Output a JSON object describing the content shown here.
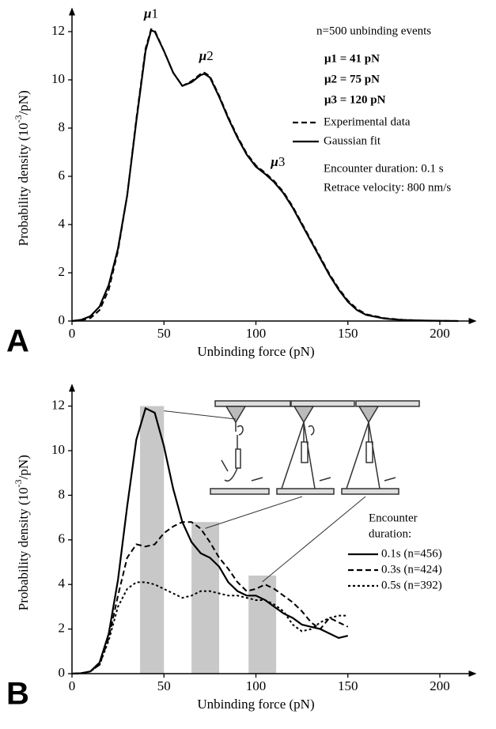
{
  "chart_data": [
    {
      "type": "line",
      "panel": "A",
      "xlabel": "Unbinding force (pN)",
      "ylabel": [
        "Probability density (10",
        "-3",
        "/pN)"
      ],
      "xlim": [
        0,
        220
      ],
      "ylim": [
        0,
        13
      ],
      "xticks": [
        0,
        50,
        100,
        150,
        200
      ],
      "yticks": [
        0,
        2,
        4,
        6,
        8,
        10,
        12
      ],
      "grid": false,
      "x": [
        0,
        5,
        10,
        15,
        20,
        25,
        30,
        35,
        40,
        43,
        45,
        50,
        55,
        60,
        65,
        70,
        72,
        75,
        80,
        85,
        90,
        95,
        100,
        105,
        110,
        115,
        120,
        125,
        130,
        135,
        140,
        145,
        150,
        155,
        160,
        170,
        180,
        190,
        200,
        210
      ],
      "series": [
        {
          "name": "Experimental data",
          "color": "#000000",
          "dash": "dashed",
          "values": [
            0,
            0.03,
            0.12,
            0.45,
            1.3,
            2.9,
            5.2,
            8.4,
            11.3,
            12.1,
            12.05,
            11.2,
            10.3,
            9.75,
            9.95,
            10.25,
            10.3,
            10.15,
            9.35,
            8.45,
            7.65,
            6.95,
            6.45,
            6.15,
            5.8,
            5.35,
            4.75,
            4.05,
            3.35,
            2.65,
            1.95,
            1.35,
            0.85,
            0.5,
            0.28,
            0.12,
            0.05,
            0.02,
            0.01,
            0
          ]
        },
        {
          "name": "Gaussian fit",
          "color": "#000000",
          "dash": "solid",
          "values": [
            0,
            0.05,
            0.2,
            0.6,
            1.5,
            3.0,
            5.2,
            8.3,
            11.2,
            12.05,
            12.0,
            11.2,
            10.3,
            9.75,
            9.9,
            10.2,
            10.25,
            10.1,
            9.3,
            8.4,
            7.6,
            6.9,
            6.4,
            6.1,
            5.75,
            5.3,
            4.7,
            4.0,
            3.3,
            2.6,
            1.9,
            1.3,
            0.8,
            0.45,
            0.25,
            0.1,
            0.04,
            0.02,
            0.01,
            0
          ]
        }
      ],
      "peak_labels": [
        [
          "μ",
          "1"
        ],
        [
          "μ",
          "2"
        ],
        [
          "μ",
          "3"
        ]
      ],
      "annotations": [
        "n=500 unbinding events",
        "μ1 =  41 pN",
        "μ2 =  75 pN",
        "μ3 = 120 pN"
      ],
      "conditions": [
        "Encounter duration: 0.1 s",
        "Retrace velocity: 800 nm/s"
      ]
    },
    {
      "type": "line",
      "panel": "B",
      "xlabel": "Unbinding force (pN)",
      "ylabel": [
        "Probability density (10",
        "-3",
        "/pN)"
      ],
      "xlim": [
        0,
        220
      ],
      "ylim": [
        0,
        13
      ],
      "xticks": [
        0,
        50,
        100,
        150,
        200
      ],
      "yticks": [
        0,
        2,
        4,
        6,
        8,
        10,
        12
      ],
      "grid": false,
      "bars": {
        "color": "#c8c8c8",
        "left": [
          37,
          65,
          96
        ],
        "right": [
          50,
          80,
          111
        ],
        "values": [
          12,
          6.8,
          4.4
        ]
      },
      "x": [
        0,
        5,
        10,
        15,
        20,
        25,
        30,
        35,
        40,
        45,
        50,
        55,
        60,
        65,
        70,
        75,
        80,
        85,
        90,
        95,
        100,
        105,
        110,
        115,
        120,
        125,
        130,
        135,
        140,
        145,
        150
      ],
      "legend_title": [
        "Encounter",
        "duration:"
      ],
      "series": [
        {
          "name": "0.1s (n=456)",
          "color": "#000000",
          "dash": "solid",
          "values": [
            0,
            0.02,
            0.1,
            0.5,
            1.8,
            4.2,
            7.5,
            10.5,
            11.9,
            11.7,
            10.2,
            8.3,
            6.8,
            5.9,
            5.4,
            5.2,
            4.8,
            4.1,
            3.7,
            3.5,
            3.5,
            3.3,
            3.0,
            2.7,
            2.5,
            2.2,
            2.1,
            2.0,
            1.8,
            1.6,
            1.7
          ]
        },
        {
          "name": "0.3s (n=424)",
          "color": "#000000",
          "dash": "dashed",
          "values": [
            0,
            0.02,
            0.1,
            0.4,
            1.6,
            3.5,
            5.2,
            5.8,
            5.7,
            5.8,
            6.3,
            6.6,
            6.8,
            6.8,
            6.5,
            5.9,
            5.2,
            4.7,
            4.1,
            3.7,
            3.8,
            4.0,
            3.8,
            3.5,
            3.2,
            2.8,
            2.3,
            2.0,
            2.5,
            2.3,
            2.1
          ]
        },
        {
          "name": "0.5s (n=392)",
          "color": "#000000",
          "dash": "dotted",
          "values": [
            0,
            0.02,
            0.1,
            0.4,
            1.5,
            3.0,
            3.8,
            4.1,
            4.1,
            4.0,
            3.8,
            3.6,
            3.4,
            3.5,
            3.7,
            3.7,
            3.6,
            3.5,
            3.5,
            3.4,
            3.3,
            3.3,
            3.1,
            2.8,
            2.2,
            1.9,
            2.0,
            2.3,
            2.5,
            2.6,
            2.6
          ]
        }
      ]
    }
  ]
}
